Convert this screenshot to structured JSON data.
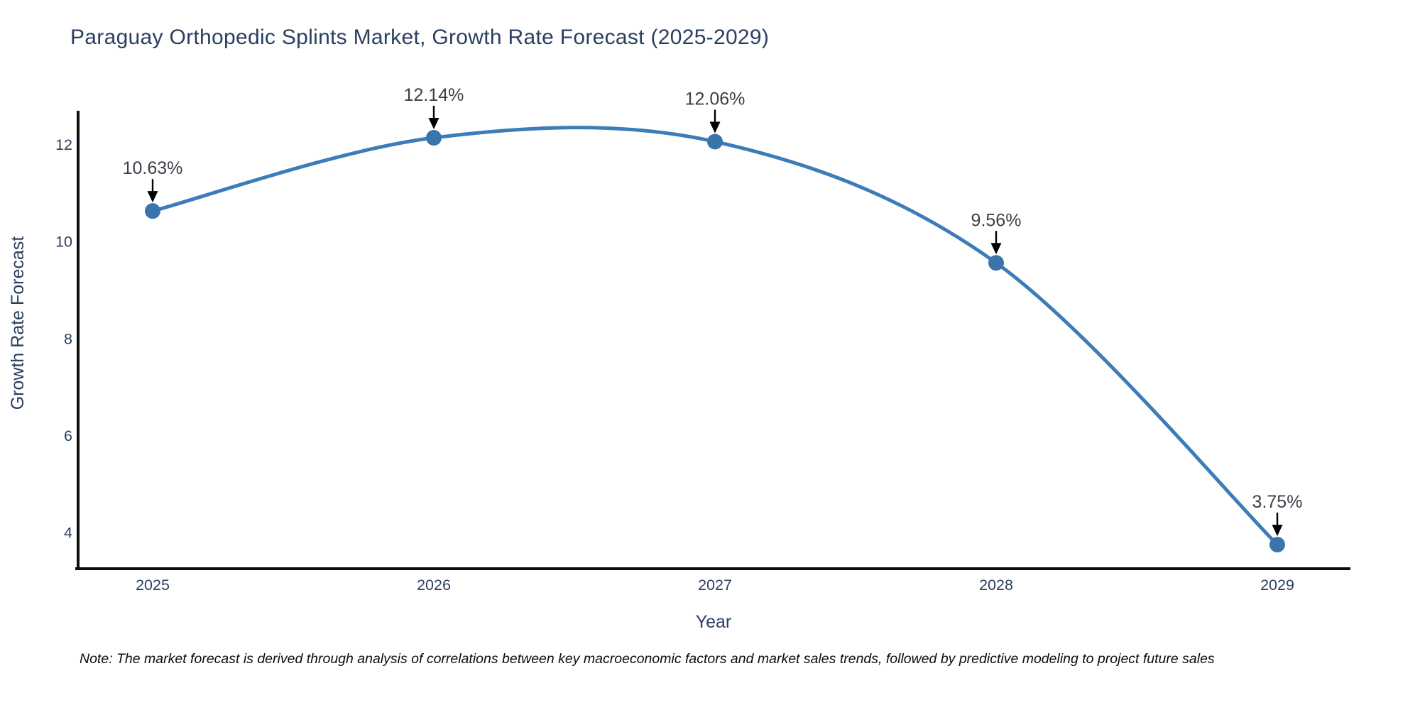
{
  "title": "Paraguay Orthopedic Splints Market, Growth Rate Forecast (2025-2029)",
  "note": "Note: The market forecast is derived through analysis of correlations between key macroeconomic factors and market sales trends, followed by predictive modeling to project future sales",
  "chart_data": {
    "type": "line",
    "title": "Paraguay Orthopedic Splints Market, Growth Rate Forecast (2025-2029)",
    "xlabel": "Year",
    "ylabel": "Growth Rate Forecast",
    "x": [
      2025,
      2026,
      2027,
      2028,
      2029
    ],
    "series": [
      {
        "name": "Growth Rate Forecast",
        "values": [
          10.63,
          12.14,
          12.06,
          9.56,
          3.75
        ]
      }
    ],
    "point_labels": [
      "10.63%",
      "12.14%",
      "12.06%",
      "9.56%",
      "3.75%"
    ],
    "yticks": [
      4,
      6,
      8,
      10,
      12
    ],
    "ylim": [
      3.3,
      12.7
    ],
    "line_shape": "spline",
    "markers": true,
    "grid": false,
    "legend": "none",
    "annotations_style": "label-with-down-arrow",
    "colors": {
      "line": "#3c7cb8",
      "marker": "#3a74ab",
      "axis": "#0d0d0d",
      "text": "#2a3f5f",
      "annotation_text": "#3a3f47",
      "arrow": "#000000",
      "background": "#ffffff"
    }
  }
}
